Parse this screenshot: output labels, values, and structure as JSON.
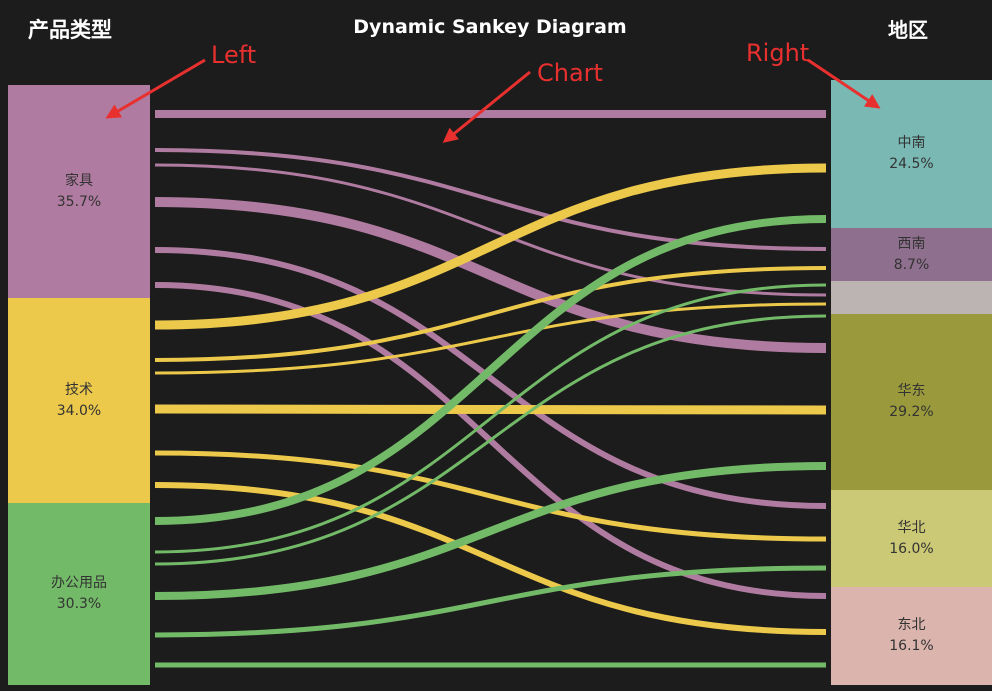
{
  "header": {
    "left_title": "产品类型",
    "title": "Dynamic Sankey Diagram",
    "right_title": "地区"
  },
  "annotations": {
    "left": "Left",
    "chart": "Chart",
    "right": "Right",
    "color": "#e8302f"
  },
  "chart_data": {
    "type": "sankey",
    "left_nodes": [
      {
        "name": "家具",
        "pct": "35.7%",
        "color": "#b07ba0"
      },
      {
        "name": "技术",
        "pct": "34.0%",
        "color": "#ecc94b"
      },
      {
        "name": "办公用品",
        "pct": "30.3%",
        "color": "#73ba68"
      }
    ],
    "right_nodes": [
      {
        "name": "中南",
        "pct": "24.5%",
        "color": "#7ab8b4"
      },
      {
        "name": "西南",
        "pct": "8.7%",
        "color": "#8f6f8e"
      },
      {
        "name": "",
        "pct": "",
        "color": "#bcb3b3"
      },
      {
        "name": "华东",
        "pct": "29.2%",
        "color": "#9a9a3c"
      },
      {
        "name": "华北",
        "pct": "16.0%",
        "color": "#cbc975"
      },
      {
        "name": "东北",
        "pct": "16.1%",
        "color": "#dbb5ad"
      }
    ]
  }
}
